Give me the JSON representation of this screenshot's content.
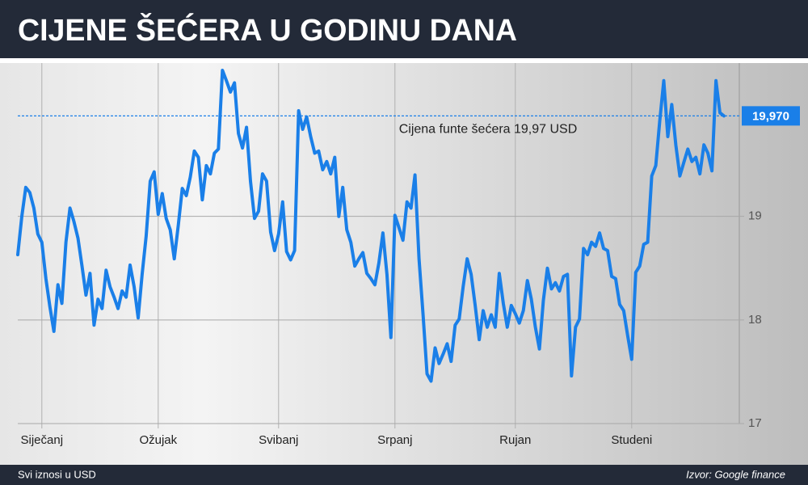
{
  "chart_data": {
    "type": "line",
    "title": "CIJENE ŠEĆERA U GODINU DANA",
    "categories": [
      null,
      null,
      null,
      null,
      null,
      null,
      "Siječanj",
      null,
      null,
      null,
      null,
      null,
      null,
      null,
      null,
      null,
      null,
      null,
      null,
      null,
      null,
      null,
      null,
      null,
      null,
      null,
      null,
      null,
      null,
      null,
      null,
      null,
      null,
      null,
      null,
      "Ožujak",
      null,
      null,
      null,
      null,
      null,
      null,
      null,
      null,
      null,
      null,
      null,
      null,
      null,
      null,
      null,
      null,
      null,
      null,
      null,
      null,
      null,
      null,
      null,
      null,
      null,
      null,
      null,
      null,
      null,
      "Svibanj",
      null,
      null,
      null,
      null,
      null,
      null,
      null,
      null,
      null,
      null,
      null,
      null,
      null,
      null,
      null,
      null,
      null,
      null,
      null,
      null,
      null,
      null,
      null,
      null,
      null,
      null,
      null,
      null,
      "Srpanj",
      null,
      null,
      null,
      null,
      null,
      null,
      null,
      null,
      null,
      null,
      null,
      null,
      null,
      null,
      null,
      null,
      null,
      null,
      null,
      null,
      null,
      null,
      null,
      null,
      null,
      null,
      null,
      null,
      null,
      "Rujan",
      null,
      null,
      null,
      null,
      null,
      null,
      null,
      null,
      null,
      null,
      null,
      null,
      null,
      null,
      null,
      null,
      null,
      null,
      null,
      null,
      null,
      null,
      null,
      null,
      null,
      null,
      null,
      null,
      "Studeni",
      null,
      null,
      null,
      null,
      null,
      null,
      null,
      null,
      null,
      null,
      null,
      null,
      null,
      null,
      null,
      null,
      null,
      null,
      null,
      null,
      null,
      null,
      null
    ],
    "values": [
      18.63,
      19.0,
      19.28,
      19.23,
      19.08,
      18.83,
      18.75,
      18.4,
      18.13,
      17.89,
      18.34,
      18.16,
      18.75,
      19.08,
      18.95,
      18.79,
      18.52,
      18.24,
      18.45,
      17.95,
      18.2,
      18.11,
      18.48,
      18.32,
      18.22,
      18.11,
      18.28,
      18.22,
      18.53,
      18.32,
      18.02,
      18.44,
      18.81,
      19.34,
      19.43,
      19.02,
      19.22,
      18.98,
      18.87,
      18.59,
      18.91,
      19.27,
      19.2,
      19.38,
      19.63,
      19.57,
      19.16,
      19.49,
      19.41,
      19.61,
      19.65,
      20.41,
      20.31,
      20.2,
      20.29,
      19.8,
      19.66,
      19.86,
      19.34,
      18.98,
      19.05,
      19.41,
      19.34,
      18.85,
      18.67,
      18.83,
      19.14,
      18.66,
      18.58,
      18.67,
      20.02,
      19.84,
      19.96,
      19.77,
      19.61,
      19.63,
      19.45,
      19.53,
      19.41,
      19.57,
      19.0,
      19.28,
      18.87,
      18.75,
      18.52,
      18.59,
      18.65,
      18.45,
      18.4,
      18.34,
      18.55,
      18.84,
      18.44,
      17.83,
      19.01,
      18.89,
      18.77,
      19.14,
      19.08,
      19.4,
      18.59,
      18.05,
      17.48,
      17.41,
      17.73,
      17.58,
      17.67,
      17.77,
      17.6,
      17.95,
      18.01,
      18.32,
      18.59,
      18.44,
      18.14,
      17.81,
      18.09,
      17.93,
      18.05,
      17.93,
      18.45,
      18.16,
      17.93,
      18.14,
      18.06,
      17.97,
      18.09,
      18.38,
      18.2,
      17.93,
      17.72,
      18.19,
      18.5,
      18.3,
      18.36,
      18.28,
      18.42,
      18.44,
      17.46,
      17.93,
      18.01,
      18.69,
      18.63,
      18.75,
      18.71,
      18.84,
      18.69,
      18.67,
      18.42,
      18.4,
      18.15,
      18.09,
      17.85,
      17.62,
      18.46,
      18.52,
      18.73,
      18.75,
      19.39,
      19.49,
      19.92,
      20.31,
      19.77,
      20.08,
      19.69,
      19.39,
      19.52,
      19.65,
      19.53,
      19.57,
      19.41,
      19.69,
      19.61,
      19.44,
      20.31,
      20.0,
      19.97
    ],
    "color": "#1a7fe8",
    "ylim": [
      17,
      20.48
    ],
    "yticks": [
      17,
      18,
      19
    ],
    "reference_line": {
      "value": 19.97,
      "label": "19,970",
      "color": "#1a7fe8"
    },
    "annotation": "Cijena funte šećera 19,97 USD",
    "note": "Svi iznosi u USD",
    "source": "Izvor: Google finance"
  }
}
